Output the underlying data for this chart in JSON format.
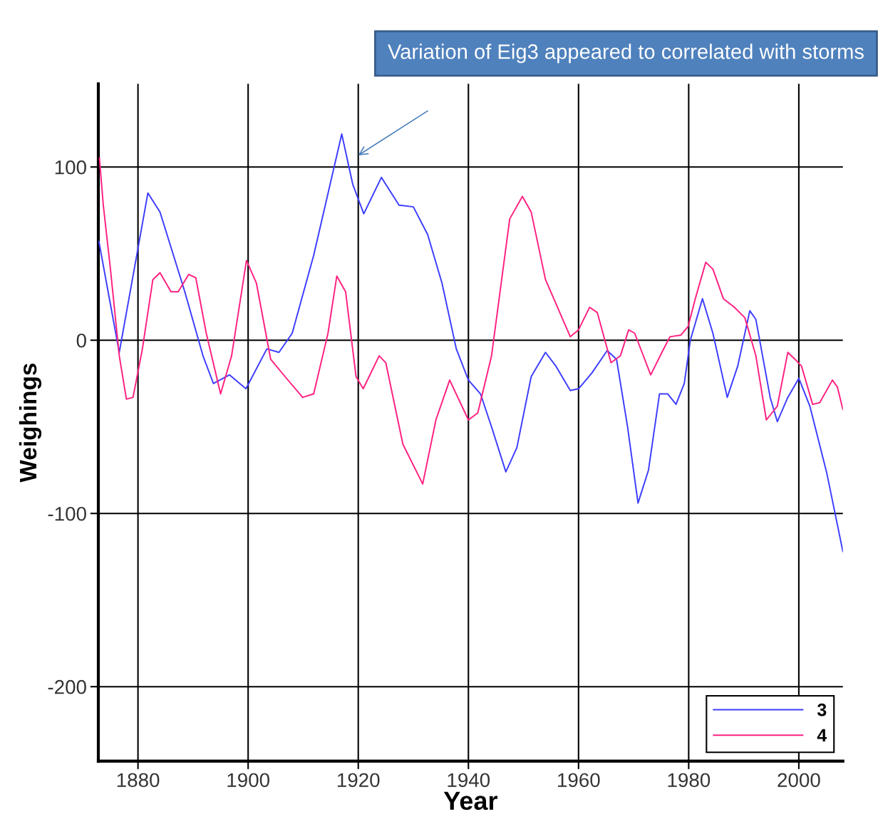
{
  "chart_data": {
    "type": "line",
    "xlabel": "Year",
    "ylabel": "Weighings",
    "xlim": [
      1872.8,
      2008
    ],
    "xticks": [
      1880,
      1900,
      1920,
      1940,
      1960,
      1980,
      2000
    ],
    "ylim": [
      -243,
      148
    ],
    "yticks": [
      -200,
      -100,
      0,
      100
    ],
    "grid": true,
    "legend": "bottom right",
    "marker": "none",
    "line_style": "solid",
    "annotations": [
      "Variation of Eig3 appeared to correlated with storms"
    ],
    "series": [
      {
        "name": "3",
        "color": "#3c3cff",
        "x": [
          1872.9,
          1876.6,
          1880,
          1881.8,
          1884,
          1888.5,
          1891.8,
          1893.7,
          1896.6,
          1899.6,
          1903.4,
          1905.6,
          1908,
          1911.9,
          1917,
          1919,
          1921,
          1924.2,
          1927.4,
          1930,
          1932.6,
          1935.2,
          1937.8,
          1940,
          1942.2,
          1944.2,
          1946.8,
          1948.8,
          1951.4,
          1954,
          1955.9,
          1958.5,
          1960,
          1962.4,
          1965.2,
          1966.9,
          1968.9,
          1970.8,
          1972.7,
          1974.7,
          1976.2,
          1977.7,
          1979.2,
          1980.3,
          1982.5,
          1984.4,
          1987,
          1988.9,
          1991.1,
          1992.2,
          1994.8,
          1996.1,
          1998,
          2000,
          2002,
          2005.1,
          2008
        ],
        "values": [
          57,
          -7,
          53,
          85,
          74,
          28,
          -9,
          -25,
          -20,
          -28,
          -5,
          -7,
          4,
          49,
          119,
          90,
          73,
          94,
          78,
          77,
          61,
          33,
          -5,
          -23,
          -31,
          -50,
          -76,
          -62,
          -21,
          -7,
          -15,
          -29,
          -28,
          -19,
          -6,
          -11,
          -50,
          -94,
          -75,
          -31,
          -31,
          -37,
          -25,
          0,
          24,
          4,
          -33,
          -15,
          17,
          12,
          -33,
          -47,
          -33,
          -22,
          -38,
          -77,
          -122
        ]
      },
      {
        "name": "4",
        "color": "#ff2080",
        "x": [
          1873,
          1873.7,
          1875,
          1876.6,
          1877.9,
          1879.1,
          1880.8,
          1882.7,
          1884,
          1886,
          1887.3,
          1889.2,
          1890.5,
          1892.4,
          1895,
          1897,
          1899.7,
          1901.5,
          1904.1,
          1906.7,
          1909.9,
          1911.9,
          1914.5,
          1916.1,
          1917.7,
          1919.6,
          1920.9,
          1923.8,
          1925,
          1928.1,
          1931.7,
          1934.1,
          1936.6,
          1940,
          1941.7,
          1944.2,
          1947.5,
          1949.8,
          1951.4,
          1954,
          1958.5,
          1960,
          1962,
          1963.4,
          1965.9,
          1967.6,
          1969.1,
          1970.2,
          1973.1,
          1975.3,
          1976.6,
          1978.6,
          1979.9,
          1981.2,
          1983.1,
          1984.4,
          1986.3,
          1988.3,
          1990.2,
          1992.2,
          1994.1,
          1996.1,
          1998,
          1999.3,
          2000.5,
          2002.5,
          2003.8,
          2006.1,
          2007,
          2008
        ],
        "values": [
          105,
          78,
          41,
          -9,
          -34,
          -33,
          -5,
          35,
          39,
          28,
          28,
          38,
          36,
          4,
          -31,
          -9,
          46,
          33,
          -11,
          -21,
          -33,
          -31,
          4,
          37,
          28,
          -21,
          -28,
          -9,
          -13,
          -60,
          -83,
          -46,
          -23,
          -46,
          -42,
          -9,
          70,
          83,
          74,
          35,
          2,
          6,
          19,
          16,
          -13,
          -9,
          6,
          4,
          -20,
          -6,
          2,
          3,
          8,
          24,
          45,
          41,
          24,
          19,
          13,
          -9,
          -46,
          -38,
          -7,
          -11,
          -15,
          -37,
          -36,
          -23,
          -27,
          -40
        ]
      }
    ]
  }
}
